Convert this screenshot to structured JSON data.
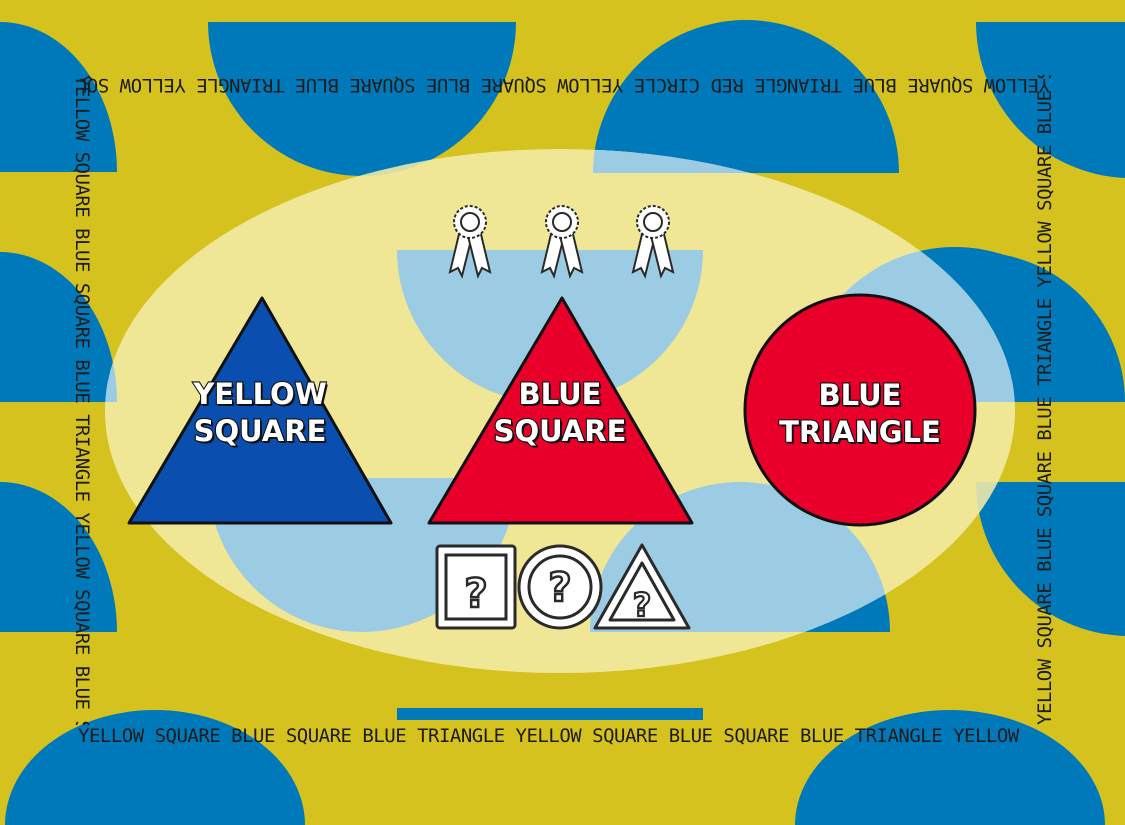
{
  "border_text": {
    "top": "YELLOW SQUARE BLUE TRIANGLE RED CIRCLE YELLOW SQUARE BLUE SQUARE BLUE TRIANGLE YELLOW SQUARE BLUE",
    "bottom": "YELLOW SQUARE BLUE SQUARE BLUE TRIANGLE YELLOW SQUARE BLUE SQUARE BLUE TRIANGLE YELLOW SQUARE BLUE",
    "left": "YELLOW SQUARE BLUE SQUARE BLUE TRIANGLE YELLOW SQUARE BLUE SQUARE",
    "right": "YELLOW SQUARE BLUE SQUARE BLUE TRIANGLE YELLOW SQUARE BLUE SQUARE BLUE SQUARE"
  },
  "cards": [
    {
      "shape": "triangle",
      "fill": "#0a4fb0",
      "line1": "YELLOW",
      "line2": "SQUARE"
    },
    {
      "shape": "triangle",
      "fill": "#e8002a",
      "line1": "BLUE",
      "line2": "SQUARE"
    },
    {
      "shape": "circle",
      "fill": "#e8002a",
      "line1": "BLUE",
      "line2": "TRIANGLE"
    }
  ],
  "rewards": {
    "icon": "ribbon-award-icon",
    "count": 3
  },
  "hint_options": [
    {
      "shape": "square",
      "icon": "question-square-icon"
    },
    {
      "shape": "circle",
      "icon": "question-circle-icon"
    },
    {
      "shape": "triangle",
      "icon": "question-triangle-icon"
    }
  ],
  "colors": {
    "background_yellow": "#d6c21e",
    "background_blue": "#0079ba",
    "panel_tint": "#f2eba7",
    "card_blue": "#0a4fb0",
    "card_red": "#e8002a"
  }
}
